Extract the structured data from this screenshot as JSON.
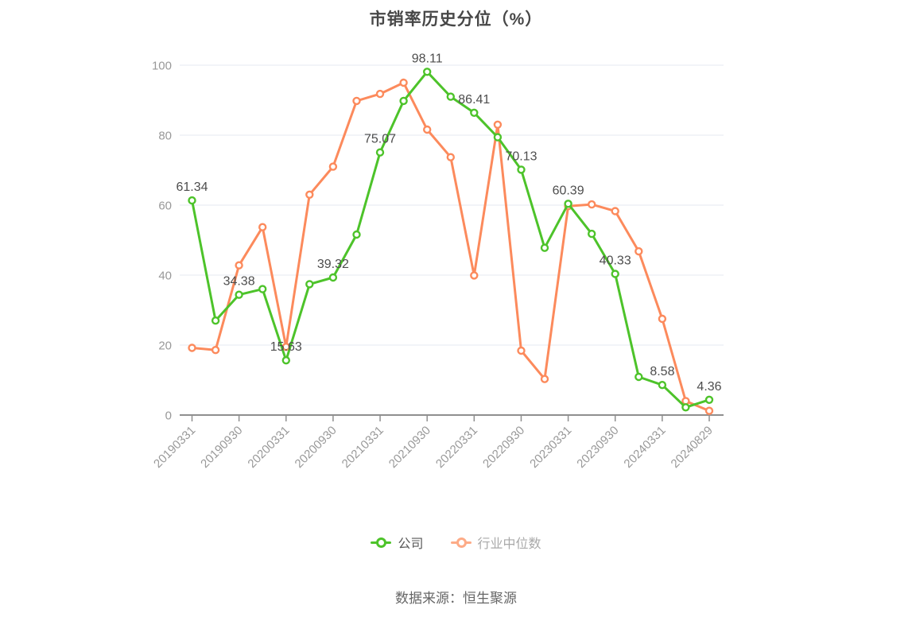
{
  "title": "市销率历史分位（%）",
  "source": "数据来源：恒生聚源",
  "legend": [
    {
      "label": "公司",
      "color": "#4dc32a",
      "text_color": "#595959"
    },
    {
      "label": "行业中位数",
      "color": "#fdab87",
      "text_color": "#a9a9a9"
    }
  ],
  "chart_style": {
    "grid_color": "#e5eaf1",
    "axis_color": "#8f8f8f",
    "tick_label_color": "#999999",
    "data_label_color": "#4d4d4d",
    "marker_fill": "#ffffff"
  },
  "chart_data": {
    "type": "line",
    "x": [
      "20190331",
      "20190630",
      "20190930",
      "20191231",
      "20200331",
      "20200630",
      "20200930",
      "20201231",
      "20210331",
      "20210630",
      "20210930",
      "20211231",
      "20220331",
      "20220630",
      "20220930",
      "20221231",
      "20230331",
      "20230630",
      "20230930",
      "20231231",
      "20240331",
      "20240630",
      "20240829"
    ],
    "x_tick_labels": [
      "20190331",
      "20190930",
      "20200331",
      "20200930",
      "20210331",
      "20210930",
      "20220331",
      "20220930",
      "20230331",
      "20230930",
      "20240331",
      "20240829"
    ],
    "ylim": [
      0,
      100
    ],
    "yticks": [
      0,
      20,
      40,
      60,
      80,
      100
    ],
    "grid": true,
    "legend_position": "bottom",
    "series": [
      {
        "name": "行业中位数",
        "color": "#fc8a5c",
        "values": [
          19.2,
          18.6,
          42.8,
          53.7,
          19.5,
          63.0,
          71.0,
          89.8,
          91.8,
          95.0,
          81.6,
          73.7,
          39.9,
          83.0,
          18.4,
          10.3,
          59.7,
          60.2,
          58.3,
          46.8,
          27.5,
          4.0,
          1.2
        ],
        "point_labels": []
      },
      {
        "name": "公司",
        "color": "#4dc32a",
        "values": [
          61.34,
          27.0,
          34.38,
          36.0,
          15.63,
          37.4,
          39.32,
          51.6,
          75.07,
          89.8,
          98.11,
          91.0,
          86.41,
          79.4,
          70.13,
          47.8,
          60.39,
          51.8,
          40.33,
          10.9,
          8.58,
          2.2,
          4.36
        ],
        "point_labels": [
          {
            "i": 0,
            "t": "61.34"
          },
          {
            "i": 2,
            "t": "34.38"
          },
          {
            "i": 4,
            "t": "15.63"
          },
          {
            "i": 6,
            "t": "39.32"
          },
          {
            "i": 8,
            "t": "75.07"
          },
          {
            "i": 10,
            "t": "98.11"
          },
          {
            "i": 12,
            "t": "86.41"
          },
          {
            "i": 14,
            "t": "70.13"
          },
          {
            "i": 16,
            "t": "60.39"
          },
          {
            "i": 18,
            "t": "40.33"
          },
          {
            "i": 20,
            "t": "8.58"
          },
          {
            "i": 22,
            "t": "4.36"
          }
        ]
      }
    ]
  }
}
